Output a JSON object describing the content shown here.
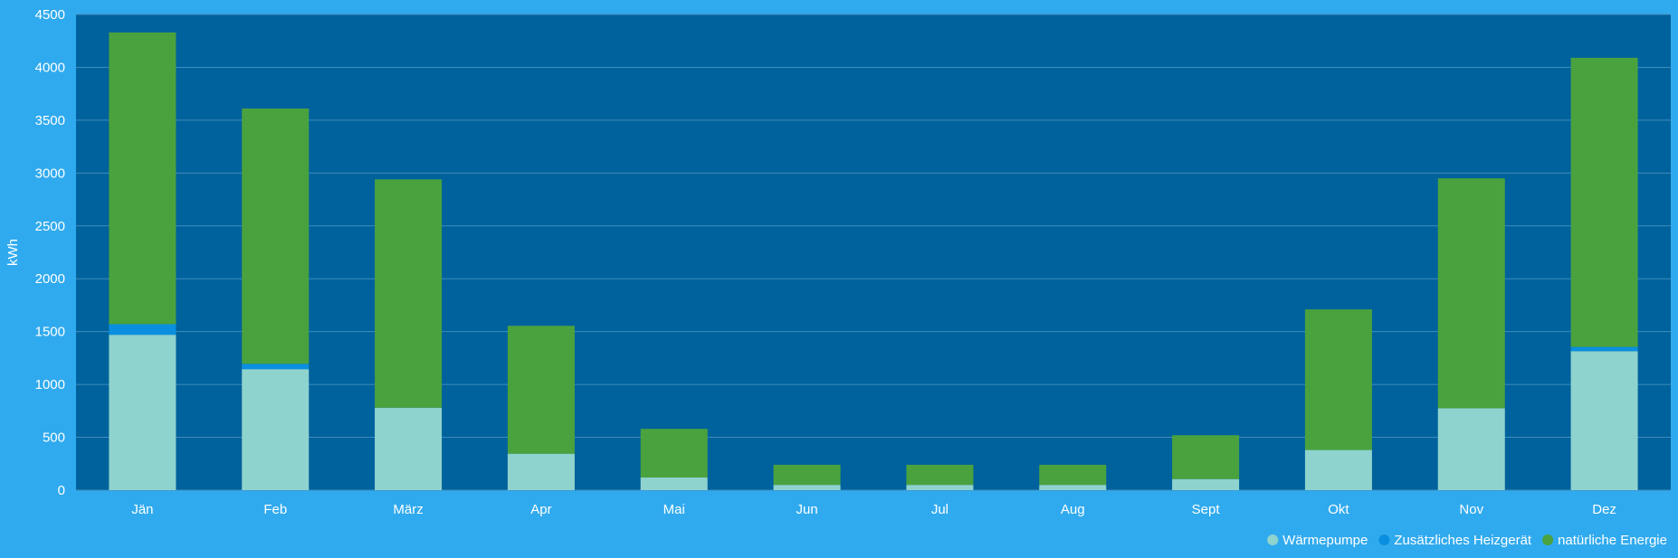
{
  "chart_data": {
    "type": "bar",
    "stacked": true,
    "title": "",
    "xlabel": "",
    "ylabel": "kWh",
    "ylim": [
      0,
      4500
    ],
    "yticks": [
      0,
      500,
      1000,
      1500,
      2000,
      2500,
      3000,
      3500,
      4000,
      4500
    ],
    "grid": true,
    "legend_position": "bottom-right",
    "categories": [
      "Jän",
      "Feb",
      "März",
      "Apr",
      "Mai",
      "Jun",
      "Jul",
      "Aug",
      "Sept",
      "Okt",
      "Nov",
      "Dez"
    ],
    "series": [
      {
        "name": "Wärmepumpe",
        "color": "#8fd3ce",
        "values": [
          1470,
          1145,
          780,
          345,
          120,
          50,
          50,
          50,
          105,
          380,
          775,
          1315
        ]
      },
      {
        "name": "Zusätzliches Heizgerät",
        "color": "#0a8fe0",
        "values": [
          100,
          50,
          0,
          0,
          0,
          0,
          0,
          0,
          0,
          0,
          0,
          40
        ]
      },
      {
        "name": "natürliche Energie",
        "color": "#4aa23e",
        "values": [
          2760,
          2415,
          2160,
          1210,
          460,
          190,
          190,
          190,
          415,
          1330,
          2175,
          2735
        ]
      }
    ]
  },
  "colors": {
    "page_background": "#30aaee",
    "plot_background": "#00629c",
    "gridline": "#3f8cbd"
  }
}
